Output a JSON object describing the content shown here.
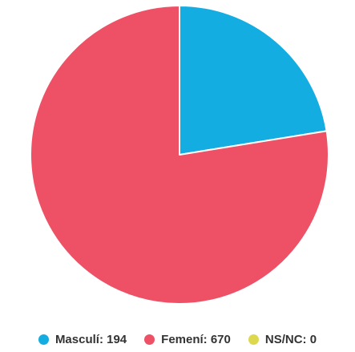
{
  "chart_data": {
    "type": "pie",
    "title": "",
    "series": [
      {
        "name": "",
        "slices": [
          {
            "label": "Masculí",
            "value": 194,
            "color": "#14ade1"
          },
          {
            "label": "Femení",
            "value": 670,
            "color": "#ee5166"
          },
          {
            "label": "NS/NC",
            "value": 0,
            "color": "#ded84e"
          }
        ]
      }
    ],
    "legend": {
      "position": "bottom",
      "items": [
        "Masculí: 194",
        "Femení: 670",
        "NS/NC: 0"
      ]
    }
  }
}
